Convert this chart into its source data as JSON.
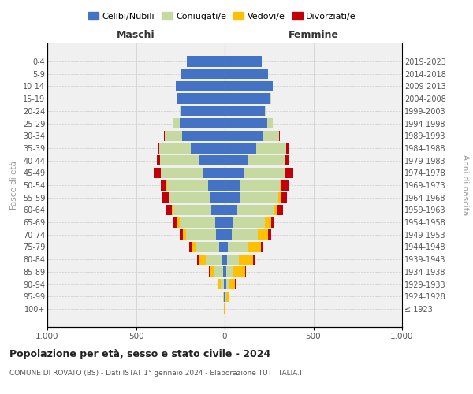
{
  "age_groups": [
    "100+",
    "95-99",
    "90-94",
    "85-89",
    "80-84",
    "75-79",
    "70-74",
    "65-69",
    "60-64",
    "55-59",
    "50-54",
    "45-49",
    "40-44",
    "35-39",
    "30-34",
    "25-29",
    "20-24",
    "15-19",
    "10-14",
    "5-9",
    "0-4"
  ],
  "birth_years": [
    "≤ 1923",
    "1924-1928",
    "1929-1933",
    "1934-1938",
    "1939-1943",
    "1944-1948",
    "1949-1953",
    "1954-1958",
    "1959-1963",
    "1964-1968",
    "1969-1973",
    "1974-1978",
    "1979-1983",
    "1984-1988",
    "1989-1993",
    "1994-1998",
    "1999-2003",
    "2004-2008",
    "2009-2013",
    "2014-2018",
    "2019-2023"
  ],
  "colors": {
    "celibi": "#4472c4",
    "coniugati": "#c5d9a0",
    "vedovi": "#ffc000",
    "divorziati": "#c0000b"
  },
  "title": "Popolazione per età, sesso e stato civile - 2024",
  "subtitle": "COMUNE DI ROVATO (BS) - Dati ISTAT 1° gennaio 2024 - Elaborazione TUTTITALIA.IT",
  "xlabel_left": "Maschi",
  "xlabel_right": "Femmine",
  "ylabel_left": "Fasce di età",
  "ylabel_right": "Anni di nascita",
  "bg_color": "#ffffff",
  "grid_color": "#cccccc",
  "m_cel": [
    2,
    3,
    5,
    10,
    20,
    30,
    50,
    55,
    75,
    85,
    95,
    120,
    145,
    190,
    240,
    255,
    245,
    265,
    275,
    245,
    215
  ],
  "m_con": [
    0,
    4,
    18,
    48,
    88,
    128,
    168,
    198,
    218,
    228,
    228,
    238,
    218,
    178,
    98,
    38,
    9,
    4,
    0,
    0,
    0
  ],
  "m_ved": [
    1,
    4,
    14,
    28,
    38,
    28,
    18,
    14,
    7,
    4,
    4,
    2,
    2,
    1,
    0,
    0,
    0,
    0,
    0,
    0,
    0
  ],
  "m_div": [
    0,
    0,
    0,
    4,
    9,
    14,
    18,
    22,
    28,
    33,
    33,
    38,
    18,
    9,
    4,
    2,
    0,
    0,
    0,
    0,
    0
  ],
  "f_cel": [
    2,
    3,
    7,
    9,
    14,
    19,
    38,
    48,
    68,
    83,
    88,
    108,
    128,
    178,
    218,
    238,
    228,
    258,
    272,
    243,
    208
  ],
  "f_con": [
    0,
    4,
    14,
    38,
    68,
    108,
    148,
    178,
    208,
    218,
    223,
    228,
    208,
    168,
    88,
    33,
    9,
    4,
    0,
    0,
    0
  ],
  "f_ved": [
    2,
    14,
    38,
    68,
    78,
    78,
    58,
    38,
    23,
    14,
    9,
    4,
    2,
    1,
    0,
    0,
    0,
    0,
    0,
    0,
    0
  ],
  "f_div": [
    0,
    0,
    2,
    4,
    9,
    14,
    18,
    18,
    28,
    38,
    38,
    48,
    23,
    11,
    4,
    2,
    0,
    0,
    0,
    0,
    0
  ]
}
